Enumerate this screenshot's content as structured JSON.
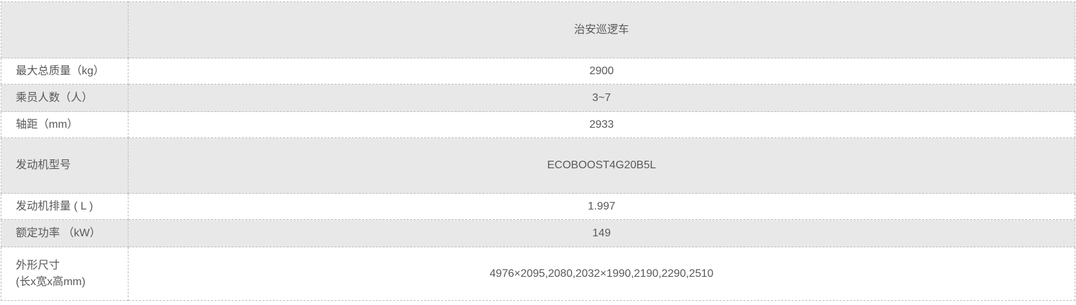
{
  "table": {
    "header": {
      "product_name": "治安巡逻车"
    },
    "rows": [
      {
        "label": "最大总质量（kg）",
        "value": "2900"
      },
      {
        "label": "乘员人数（人）",
        "value": "3~7"
      },
      {
        "label": "轴距（mm）",
        "value": "2933"
      },
      {
        "label": "发动机型号",
        "value": "ECOBOOST4G20B5L"
      },
      {
        "label": "发动机排量 ( L )",
        "value": "1.997"
      },
      {
        "label": "额定功率 （kW）",
        "value": "149"
      },
      {
        "label": "外形尺寸\n(长x宽x高mm)",
        "value": "4976×2095,2080,2032×1990,2190,2290,2510"
      }
    ],
    "colors": {
      "alt_row_bg": "#e8e8e8",
      "border": "#bfbfbf",
      "text": "#595959",
      "page_bg": "#ffffff"
    }
  }
}
